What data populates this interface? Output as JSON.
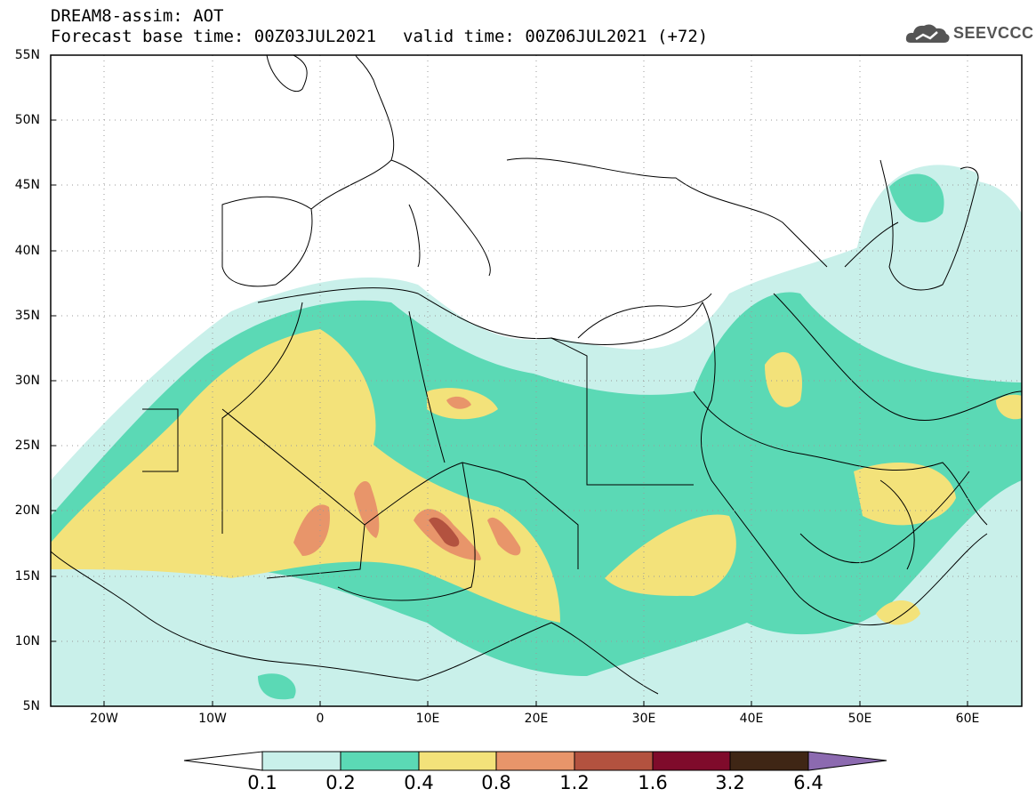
{
  "title": {
    "line1": "DREAM8-assim: AOT",
    "base_time": "Forecast base time: 00Z03JUL2021",
    "valid_time": "valid time: 00Z06JUL2021 (+72)"
  },
  "logo": {
    "text": "SEEVCCC",
    "icon": "cloud-logo-icon"
  },
  "axes": {
    "lat_labels": [
      "55N",
      "50N",
      "45N",
      "40N",
      "35N",
      "30N",
      "25N",
      "20N",
      "15N",
      "10N",
      "5N"
    ],
    "lon_labels": [
      "20W",
      "10W",
      "0",
      "10E",
      "20E",
      "30E",
      "40E",
      "50E",
      "60E"
    ],
    "lat_range": [
      5,
      55
    ],
    "lon_range": [
      -25,
      65
    ],
    "grid": "dotted"
  },
  "colorbar": {
    "labels": [
      "0.1",
      "0.2",
      "0.4",
      "0.8",
      "1.2",
      "1.6",
      "3.2",
      "6.4"
    ],
    "colors": [
      "#c9f0ea",
      "#5bd9b5",
      "#f3e27a",
      "#e8956a",
      "#b3523f",
      "#7f0b2b",
      "#3f2615",
      "#8c6ab0"
    ]
  },
  "layout_colors": {
    "land_bg": "#ffffff",
    "border": "#000000"
  }
}
